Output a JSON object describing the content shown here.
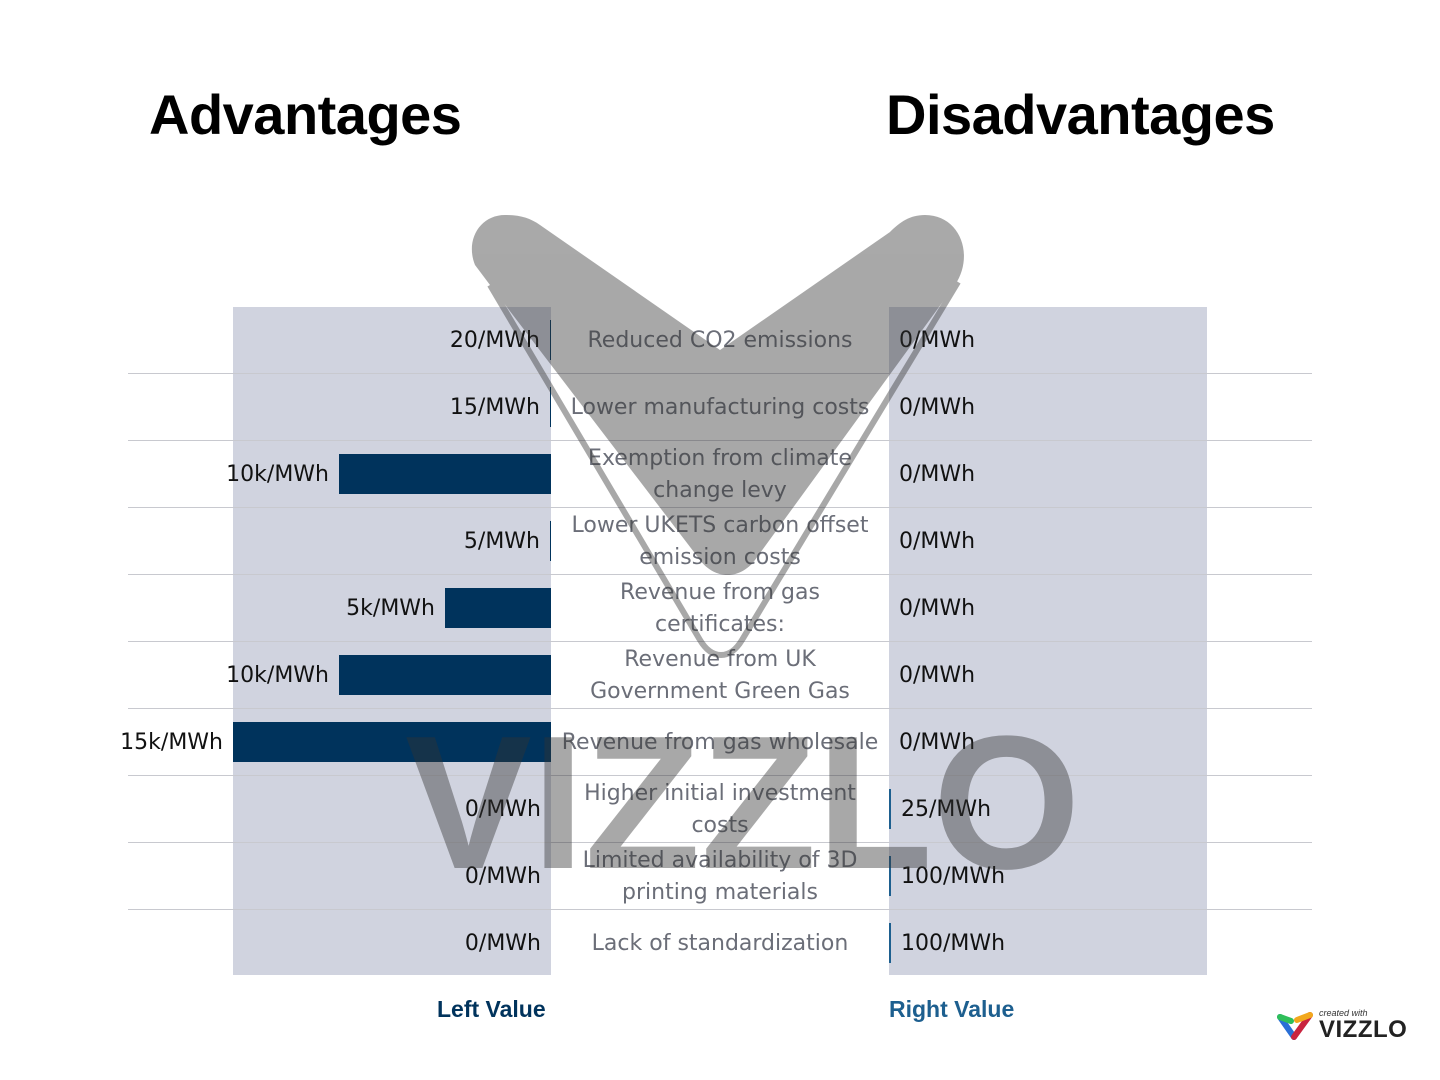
{
  "titles": {
    "left": "Advantages",
    "right": "Disadvantages"
  },
  "axis_labels": {
    "left": "Left Value",
    "right": "Right Value"
  },
  "colors": {
    "left_bar": "#00335c",
    "right_bar": "#1d5f8f",
    "panel_bg": "#d0d3df",
    "category_text": "#6b6e78"
  },
  "rows": [
    {
      "category": "Reduced CO2 emissions",
      "left_label": "20/MWh",
      "right_label": "0/MWh"
    },
    {
      "category": "Lower manufacturing costs",
      "left_label": "15/MWh",
      "right_label": "0/MWh"
    },
    {
      "category": "Exemption from climate change levy",
      "left_label": "10k/MWh",
      "right_label": "0/MWh"
    },
    {
      "category": "Lower UKETS carbon offset emission costs",
      "left_label": "5/MWh",
      "right_label": "0/MWh"
    },
    {
      "category": "Revenue from gas certificates:",
      "left_label": "5k/MWh",
      "right_label": "0/MWh"
    },
    {
      "category": "Revenue from UK Government Green Gas",
      "left_label": "10k/MWh",
      "right_label": "0/MWh"
    },
    {
      "category": "Revenue from gas wholesale",
      "left_label": "15k/MWh",
      "right_label": "0/MWh"
    },
    {
      "category": "Higher initial investment costs",
      "left_label": "0/MWh",
      "right_label": "25/MWh"
    },
    {
      "category": "Limited availability of 3D printing materials",
      "left_label": "0/MWh",
      "right_label": "100/MWh"
    },
    {
      "category": "Lack of standardization",
      "left_label": "0/MWh",
      "right_label": "100/MWh"
    }
  ],
  "watermark": {
    "text": "VIZZLO"
  },
  "branding": {
    "created_with": "created with",
    "name": "VIZZLO"
  },
  "chart_data": {
    "type": "bar",
    "orientation": "horizontal-butterfly",
    "title": "",
    "categories": [
      "Reduced CO2 emissions",
      "Lower manufacturing costs",
      "Exemption from climate change levy",
      "Lower UKETS carbon offset emission costs",
      "Revenue from gas certificates:",
      "Revenue from UK Government Green Gas",
      "Revenue from gas wholesale",
      "Higher initial investment costs",
      "Limited availability of 3D printing materials",
      "Lack of standardization"
    ],
    "series": [
      {
        "name": "Left Value",
        "group_title": "Advantages",
        "values": [
          20,
          15,
          10000,
          5,
          5000,
          10000,
          15000,
          0,
          0,
          0
        ],
        "labels": [
          "20/MWh",
          "15/MWh",
          "10k/MWh",
          "5/MWh",
          "5k/MWh",
          "10k/MWh",
          "15k/MWh",
          "0/MWh",
          "0/MWh",
          "0/MWh"
        ],
        "color": "#00335c"
      },
      {
        "name": "Right Value",
        "group_title": "Disadvantages",
        "values": [
          0,
          0,
          0,
          0,
          0,
          0,
          0,
          25,
          100,
          100
        ],
        "labels": [
          "0/MWh",
          "0/MWh",
          "0/MWh",
          "0/MWh",
          "0/MWh",
          "0/MWh",
          "0/MWh",
          "25/MWh",
          "100/MWh",
          "100/MWh"
        ],
        "color": "#1d5f8f"
      }
    ],
    "xlabel_left": "Left Value",
    "xlabel_right": "Right Value",
    "unit": "/MWh",
    "xlim_left": [
      0,
      15000
    ],
    "xlim_right": [
      0,
      15000
    ],
    "grid": false,
    "legend": "axis labels below each side"
  }
}
